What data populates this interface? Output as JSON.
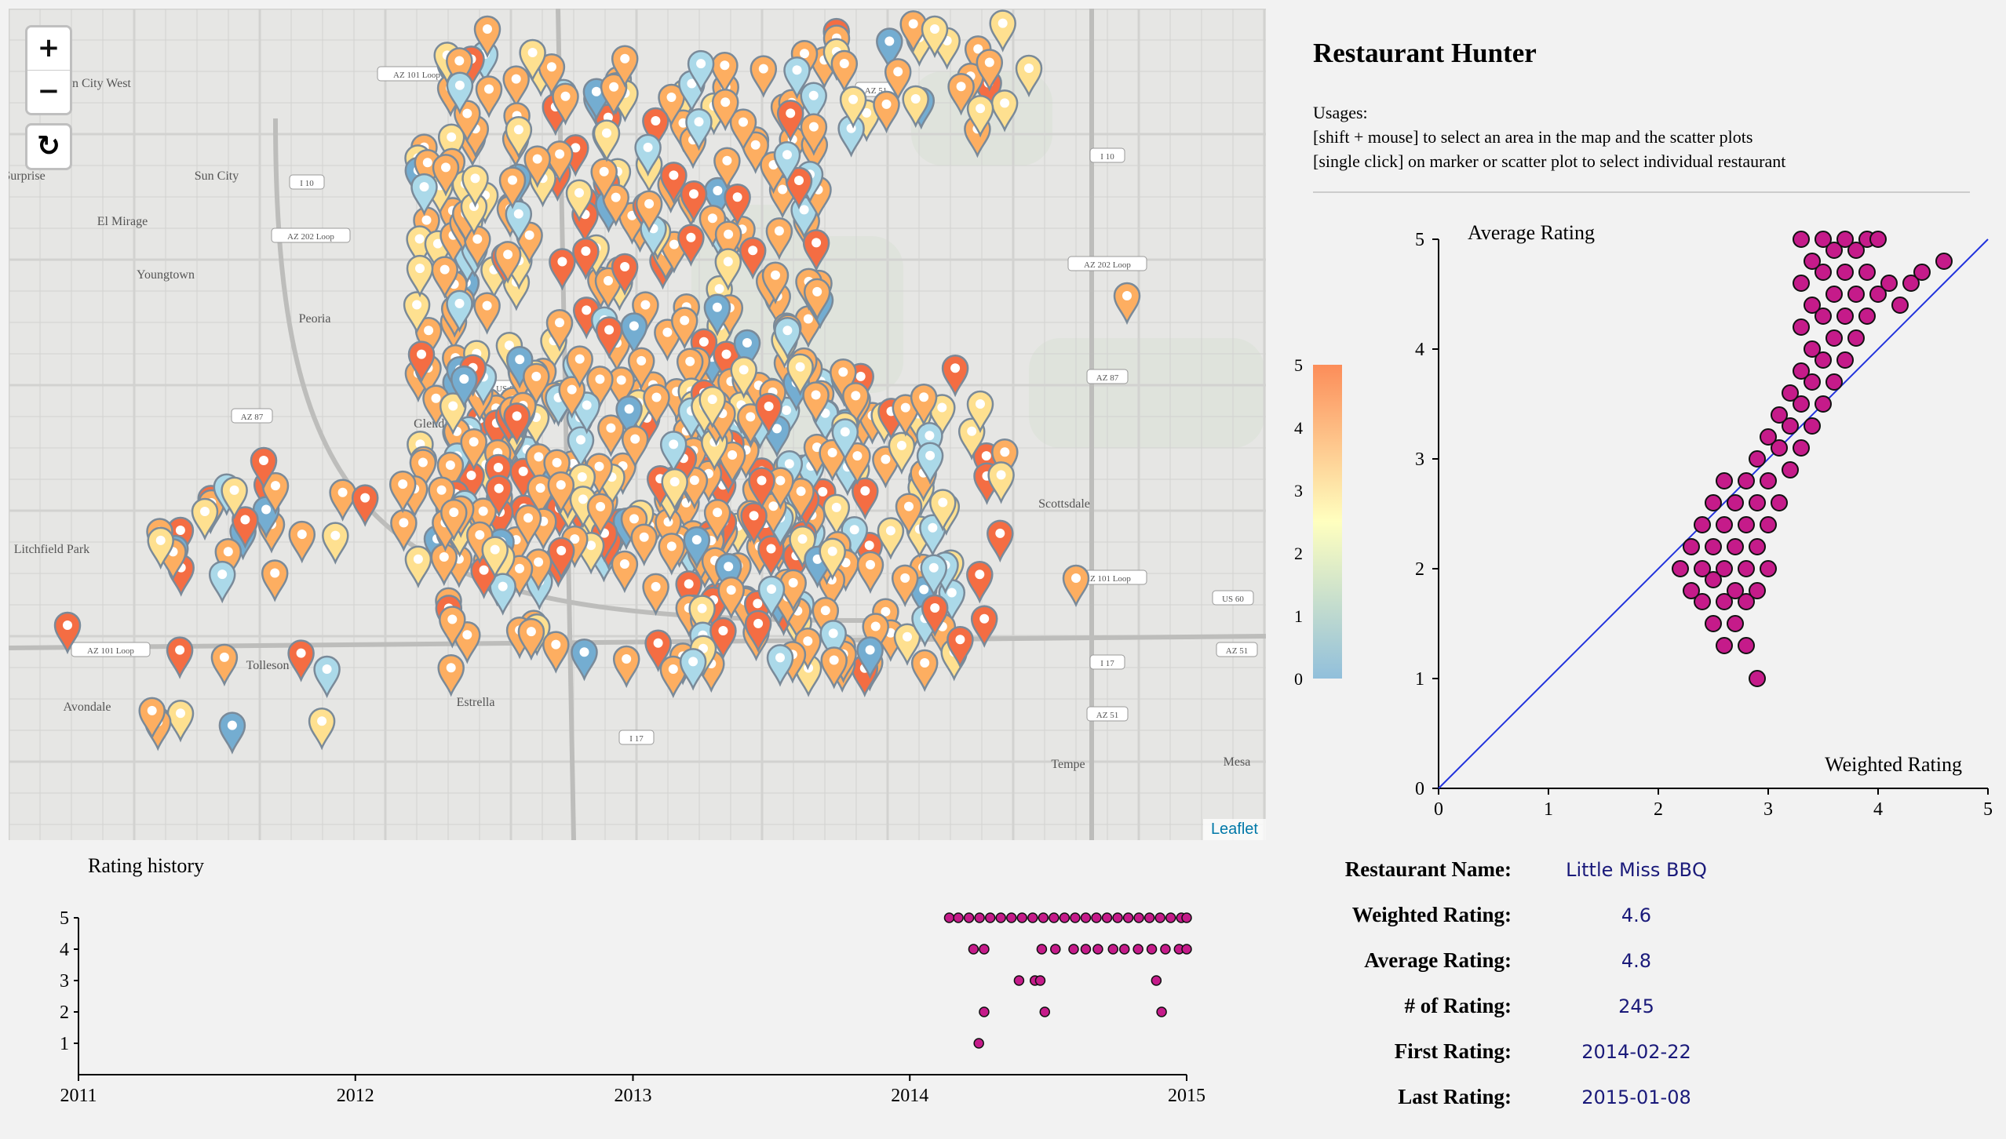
{
  "app": {
    "title": "Restaurant Hunter",
    "usage_heading": "Usages:",
    "usage_lines": [
      "[shift + mouse] to select an area in the map and the scatter plots",
      "[single click] on marker or scatter plot to select individual restaurant"
    ]
  },
  "map": {
    "zoom_in_label": "+",
    "zoom_out_label": "−",
    "reset_label": "↻",
    "attribution": "Leaflet",
    "place_labels": [
      "Sun City West",
      "Surprise",
      "Sun City",
      "El Mirage",
      "Youngtown",
      "Peoria",
      "Glendale",
      "Litchfield Park",
      "Tolleson",
      "Avondale",
      "Scottsdale",
      "Tempe",
      "Mesa",
      "Estrella"
    ],
    "road_shields": [
      "AZ 101 Loop",
      "I 17",
      "AZ 51",
      "US 60",
      "I 10",
      "AZ 202 Loop",
      "AZ 87"
    ],
    "marker_colors": [
      "#f46d43",
      "#fdae61",
      "#fee090",
      "#abd9e9",
      "#74add1"
    ]
  },
  "legend": {
    "ticks": [
      "0",
      "1",
      "2",
      "3",
      "4",
      "5"
    ],
    "gradient": [
      "#91bfdb",
      "#ffffbf",
      "#fc8d59"
    ]
  },
  "scatter": {
    "y_title": "Average Rating",
    "x_title": "Weighted Rating",
    "x_ticks": [
      "0",
      "1",
      "2",
      "3",
      "4",
      "5"
    ],
    "y_ticks": [
      "0",
      "1",
      "2",
      "3",
      "4",
      "5"
    ],
    "point_color": "#c51b8a"
  },
  "history": {
    "title": "Rating history",
    "x_ticks": [
      "2011",
      "2012",
      "2013",
      "2014",
      "2015"
    ],
    "y_ticks": [
      "1",
      "2",
      "3",
      "4",
      "5"
    ],
    "point_color": "#c51b8a"
  },
  "selected": {
    "name_label": "Restaurant Name:",
    "name": "Little Miss BBQ",
    "weighted_label": "Weighted Rating:",
    "weighted": "4.6",
    "average_label": "Average Rating:",
    "average": "4.8",
    "count_label": "# of Rating:",
    "count": "245",
    "first_label": "First Rating:",
    "first": "2014-02-22",
    "last_label": "Last Rating:",
    "last": "2015-01-08"
  },
  "chart_data": [
    {
      "type": "scatter",
      "title": "",
      "xlabel": "Weighted Rating",
      "ylabel": "Average Rating",
      "xlim": [
        0,
        5
      ],
      "ylim": [
        0,
        5
      ],
      "reference_line": "y = x",
      "series": [
        {
          "points": [
            [
              2.9,
              1.0
            ],
            [
              2.8,
              1.3
            ],
            [
              2.6,
              1.3
            ],
            [
              2.7,
              1.5
            ],
            [
              2.5,
              1.5
            ],
            [
              2.8,
              1.7
            ],
            [
              2.4,
              1.7
            ],
            [
              2.6,
              1.7
            ],
            [
              2.3,
              1.8
            ],
            [
              2.7,
              1.8
            ],
            [
              2.9,
              1.8
            ],
            [
              2.5,
              1.9
            ],
            [
              2.2,
              2.0
            ],
            [
              2.4,
              2.0
            ],
            [
              2.6,
              2.0
            ],
            [
              2.8,
              2.0
            ],
            [
              3.0,
              2.0
            ],
            [
              2.3,
              2.2
            ],
            [
              2.5,
              2.2
            ],
            [
              2.7,
              2.2
            ],
            [
              2.9,
              2.2
            ],
            [
              2.4,
              2.4
            ],
            [
              2.6,
              2.4
            ],
            [
              2.8,
              2.4
            ],
            [
              3.0,
              2.4
            ],
            [
              2.5,
              2.6
            ],
            [
              2.7,
              2.6
            ],
            [
              2.9,
              2.6
            ],
            [
              3.1,
              2.6
            ],
            [
              2.6,
              2.8
            ],
            [
              2.8,
              2.8
            ],
            [
              3.0,
              2.8
            ],
            [
              3.2,
              2.9
            ],
            [
              2.9,
              3.0
            ],
            [
              3.1,
              3.1
            ],
            [
              3.3,
              3.1
            ],
            [
              3.0,
              3.2
            ],
            [
              3.2,
              3.3
            ],
            [
              3.4,
              3.3
            ],
            [
              3.1,
              3.4
            ],
            [
              3.3,
              3.5
            ],
            [
              3.5,
              3.5
            ],
            [
              3.2,
              3.6
            ],
            [
              3.4,
              3.7
            ],
            [
              3.6,
              3.7
            ],
            [
              3.3,
              3.8
            ],
            [
              3.5,
              3.9
            ],
            [
              3.7,
              3.9
            ],
            [
              3.4,
              4.0
            ],
            [
              3.6,
              4.1
            ],
            [
              3.8,
              4.1
            ],
            [
              3.3,
              4.2
            ],
            [
              3.5,
              4.3
            ],
            [
              3.7,
              4.3
            ],
            [
              3.9,
              4.3
            ],
            [
              3.4,
              4.4
            ],
            [
              3.6,
              4.5
            ],
            [
              3.8,
              4.5
            ],
            [
              4.0,
              4.5
            ],
            [
              4.2,
              4.4
            ],
            [
              3.3,
              4.6
            ],
            [
              3.5,
              4.7
            ],
            [
              3.7,
              4.7
            ],
            [
              3.9,
              4.7
            ],
            [
              4.1,
              4.6
            ],
            [
              4.3,
              4.6
            ],
            [
              3.4,
              4.8
            ],
            [
              3.6,
              4.9
            ],
            [
              3.8,
              4.9
            ],
            [
              4.4,
              4.7
            ],
            [
              4.6,
              4.8
            ],
            [
              3.3,
              5.0
            ],
            [
              3.5,
              5.0
            ],
            [
              3.7,
              5.0
            ],
            [
              3.9,
              5.0
            ],
            [
              4.0,
              5.0
            ]
          ]
        }
      ]
    },
    {
      "type": "scatter",
      "title": "Rating history",
      "xlabel": "",
      "ylabel": "",
      "xlim": [
        "2011-01-01",
        "2015-01-01"
      ],
      "ylim": [
        0,
        5
      ],
      "series": [
        {
          "points": [
            [
              "2014-04-02",
              1
            ],
            [
              "2014-04-09",
              2
            ],
            [
              "2014-06-28",
              2
            ],
            [
              "2014-11-29",
              2
            ],
            [
              "2014-05-25",
              3
            ],
            [
              "2014-06-15",
              3
            ],
            [
              "2014-06-22",
              3
            ],
            [
              "2014-11-22",
              3
            ],
            [
              "2014-03-26",
              4
            ],
            [
              "2014-04-09",
              4
            ],
            [
              "2014-06-24",
              4
            ],
            [
              "2014-07-12",
              4
            ],
            [
              "2014-08-05",
              4
            ],
            [
              "2014-08-21",
              4
            ],
            [
              "2014-09-06",
              4
            ],
            [
              "2014-09-26",
              4
            ],
            [
              "2014-10-11",
              4
            ],
            [
              "2014-10-29",
              4
            ],
            [
              "2014-11-16",
              4
            ],
            [
              "2014-12-04",
              4
            ],
            [
              "2014-12-22",
              4
            ],
            [
              "2015-01-01",
              4
            ],
            [
              "2014-02-22",
              5
            ],
            [
              "2014-03-06",
              5
            ],
            [
              "2014-03-20",
              5
            ],
            [
              "2014-04-03",
              5
            ],
            [
              "2014-04-17",
              5
            ],
            [
              "2014-05-01",
              5
            ],
            [
              "2014-05-15",
              5
            ],
            [
              "2014-05-29",
              5
            ],
            [
              "2014-06-12",
              5
            ],
            [
              "2014-06-26",
              5
            ],
            [
              "2014-07-10",
              5
            ],
            [
              "2014-07-24",
              5
            ],
            [
              "2014-08-07",
              5
            ],
            [
              "2014-08-21",
              5
            ],
            [
              "2014-09-04",
              5
            ],
            [
              "2014-09-18",
              5
            ],
            [
              "2014-10-02",
              5
            ],
            [
              "2014-10-16",
              5
            ],
            [
              "2014-10-30",
              5
            ],
            [
              "2014-11-13",
              5
            ],
            [
              "2014-11-27",
              5
            ],
            [
              "2014-12-11",
              5
            ],
            [
              "2014-12-25",
              5
            ],
            [
              "2015-01-01",
              5
            ]
          ]
        }
      ]
    }
  ]
}
